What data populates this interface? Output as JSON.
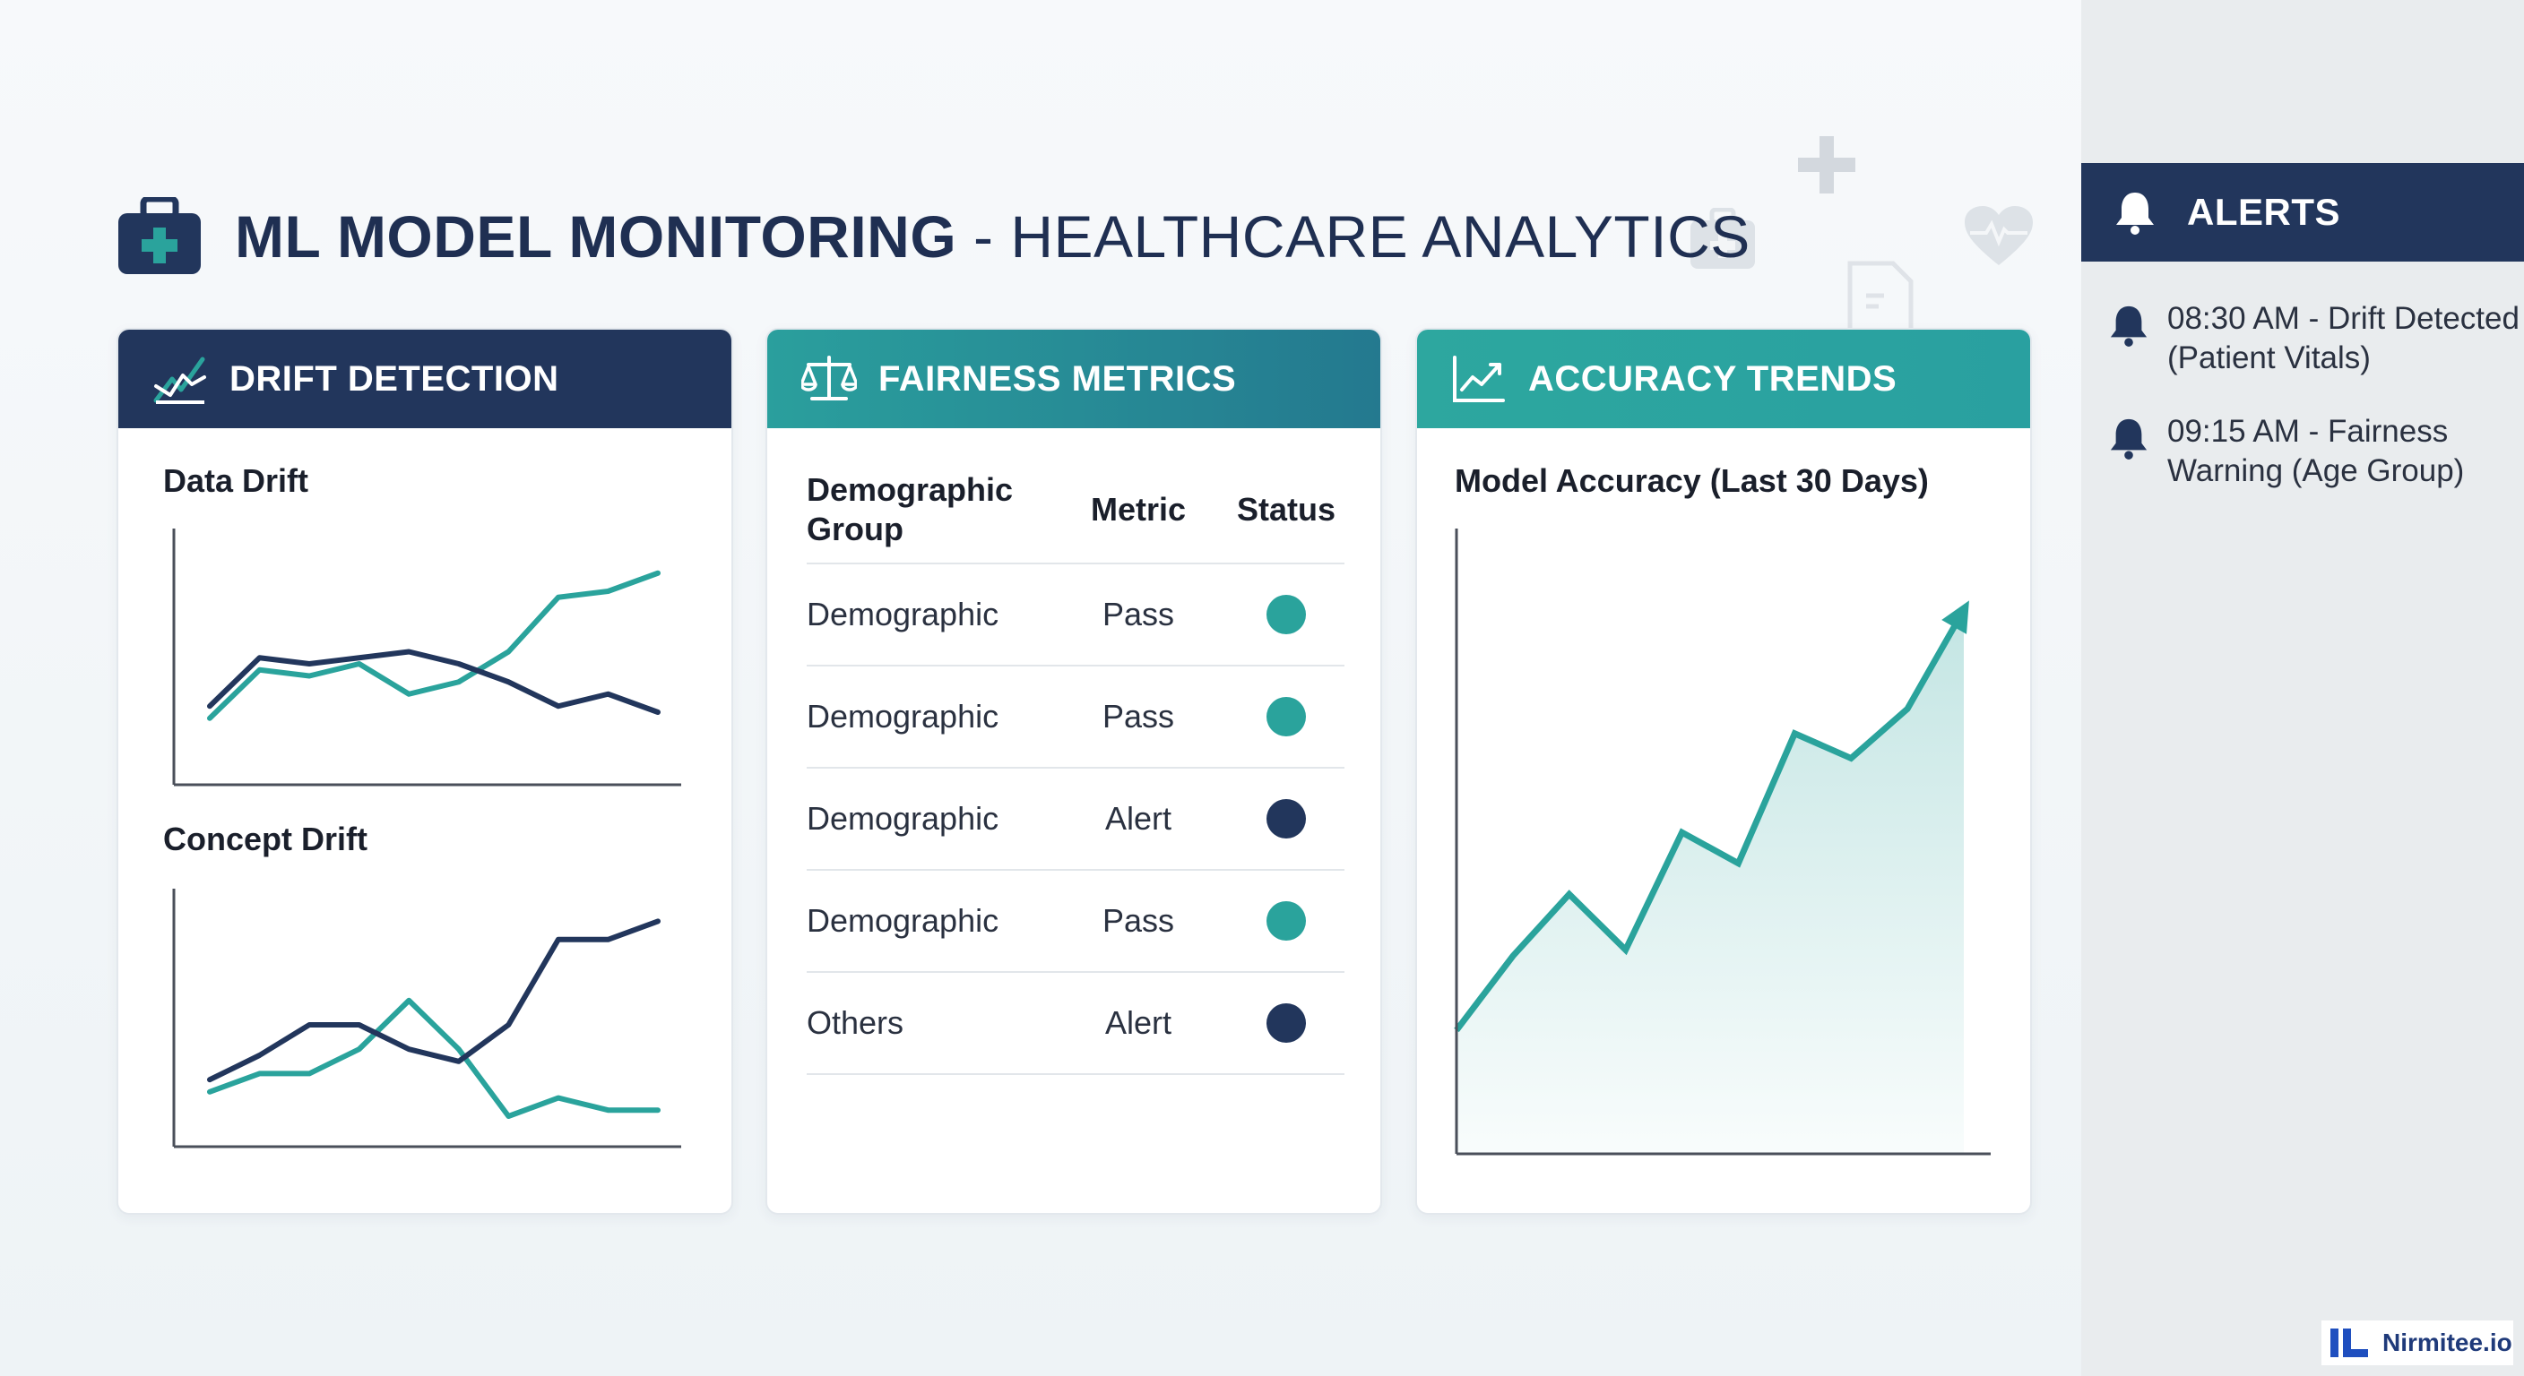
{
  "header": {
    "title_strong": "ML MODEL MONITORING",
    "title_rest": " - HEALTHCARE ANALYTICS",
    "icon": "medical-briefcase-icon"
  },
  "colors": {
    "navy": "#22365c",
    "teal": "#2aa39c",
    "pass": "#2aa39c",
    "alert": "#22365c",
    "sidebar_bg": "#e9ecee"
  },
  "drift_panel": {
    "title": "DRIFT DETECTION",
    "icon": "trend-line-icon",
    "data_drift_label": "Data Drift",
    "concept_drift_label": "Concept Drift"
  },
  "fairness_panel": {
    "title": "FAIRNESS METRICS",
    "icon": "balance-scale-icon",
    "columns": [
      "Demographic Group",
      "Metric",
      "Status"
    ],
    "rows": [
      {
        "group": "Demographic",
        "metric": "Pass",
        "status": "pass"
      },
      {
        "group": "Demographic",
        "metric": "Pass",
        "status": "pass"
      },
      {
        "group": "Demographic",
        "metric": "Alert",
        "status": "alert"
      },
      {
        "group": "Demographic",
        "metric": "Pass",
        "status": "pass"
      },
      {
        "group": "Others",
        "metric": "Alert",
        "status": "alert"
      }
    ]
  },
  "accuracy_panel": {
    "title": "ACCURACY TRENDS",
    "icon": "line-chart-icon",
    "chart_label": "Model Accuracy (Last 30 Days)"
  },
  "chart_data": [
    {
      "type": "line",
      "title": "Data Drift",
      "x": [
        0,
        1,
        2,
        3,
        4,
        5,
        6,
        7,
        8,
        9
      ],
      "series": [
        {
          "values": [
            1.1,
            1.9,
            1.8,
            2.0,
            1.5,
            1.7,
            2.2,
            3.1,
            3.2,
            3.5
          ]
        },
        {
          "values": [
            1.3,
            2.1,
            2.0,
            2.1,
            2.2,
            2.0,
            1.7,
            1.3,
            1.5,
            1.2
          ]
        }
      ],
      "ylim": [
        0,
        4
      ]
    },
    {
      "type": "line",
      "title": "Concept Drift",
      "x": [
        0,
        1,
        2,
        3,
        4,
        5,
        6,
        7,
        8,
        9
      ],
      "series": [
        {
          "values": [
            0.9,
            1.2,
            1.2,
            1.6,
            2.4,
            1.6,
            0.5,
            0.8,
            0.6,
            0.6
          ]
        },
        {
          "values": [
            1.1,
            1.5,
            2.0,
            2.0,
            1.6,
            1.4,
            2.0,
            3.4,
            3.4,
            3.7
          ]
        }
      ],
      "ylim": [
        0,
        4
      ]
    },
    {
      "type": "area",
      "title": "Model Accuracy (Last 30 Days)",
      "x": [
        0,
        1,
        2,
        3,
        4,
        5,
        6,
        7,
        8,
        9
      ],
      "values": [
        20,
        32,
        42,
        33,
        52,
        47,
        68,
        64,
        72,
        88
      ],
      "ylim": [
        0,
        100
      ]
    }
  ],
  "alerts": {
    "title": "ALERTS",
    "items": [
      {
        "line1": "08:30 AM - Drift Detected",
        "line2": "(Patient Vitals)"
      },
      {
        "line1": "09:15 AM - Fairness",
        "line2": "Warning (Age Group)"
      }
    ]
  },
  "brand": {
    "name": "Nirmitee.io"
  }
}
